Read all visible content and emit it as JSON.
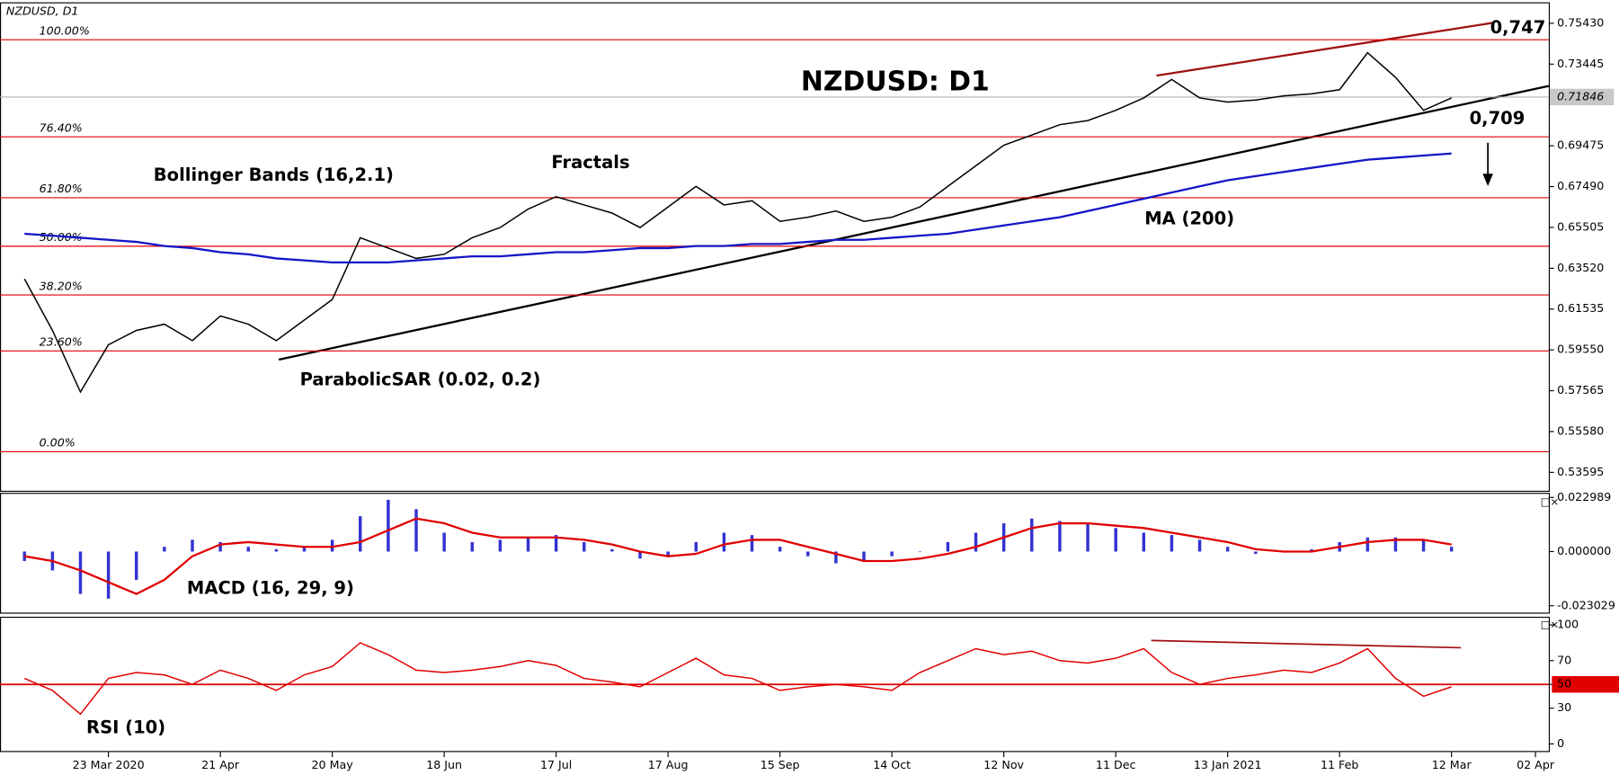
{
  "chart_data": [
    {
      "type": "line",
      "title": "NZDUSD: D1",
      "subtitle": "NZDUSD, D1",
      "categories": [
        null,
        null,
        null,
        "23 Mar 2020",
        null,
        null,
        null,
        "21 Apr",
        null,
        null,
        null,
        "20 May",
        null,
        null,
        null,
        "18 Jun",
        null,
        null,
        null,
        "17 Jul",
        null,
        null,
        null,
        "17 Aug",
        null,
        null,
        null,
        "15 Sep",
        null,
        null,
        null,
        "14 Oct",
        null,
        null,
        null,
        "12 Nov",
        null,
        null,
        null,
        "11 Dec",
        null,
        null,
        null,
        "13 Jan 2021",
        null,
        null,
        null,
        "11 Feb",
        null,
        null,
        null,
        "12 Mar",
        null,
        null,
        "02 Apr"
      ],
      "series": [
        {
          "color": "#000000",
          "values": [
            0.63,
            0.605,
            0.575,
            0.598,
            0.605,
            0.608,
            0.6,
            0.612,
            0.608,
            0.6,
            0.61,
            0.62,
            0.65,
            0.645,
            0.64,
            0.642,
            0.65,
            0.655,
            0.664,
            0.67,
            0.666,
            0.662,
            0.655,
            0.665,
            0.675,
            0.666,
            0.668,
            0.658,
            0.66,
            0.663,
            0.658,
            0.66,
            0.665,
            0.675,
            0.685,
            0.695,
            0.7,
            0.705,
            0.707,
            0.712,
            0.718,
            0.727,
            0.718,
            0.716,
            0.717,
            0.719,
            0.72,
            0.722,
            0.74,
            0.728,
            0.712,
            0.718,
            null,
            null,
            null
          ]
        },
        {
          "name": "MA (200)",
          "color": "#1515c8",
          "values": [
            0.652,
            0.651,
            0.65,
            0.649,
            0.648,
            0.646,
            0.645,
            0.643,
            0.642,
            0.64,
            0.639,
            0.638,
            0.638,
            0.638,
            0.639,
            0.64,
            0.641,
            0.641,
            0.642,
            0.643,
            0.643,
            0.644,
            0.645,
            0.645,
            0.646,
            0.646,
            0.647,
            0.647,
            0.648,
            0.649,
            0.649,
            0.65,
            0.651,
            0.652,
            0.654,
            0.656,
            0.658,
            0.66,
            0.663,
            0.666,
            0.669,
            0.672,
            0.675,
            0.678,
            0.68,
            0.682,
            0.684,
            0.686,
            0.688,
            0.689,
            0.69,
            0.691,
            null,
            null,
            null
          ]
        }
      ],
      "ylim": [
        0.527,
        0.764
      ],
      "yticks": [
        {
          "value": 0.7543,
          "label": "0.75430"
        },
        {
          "value": 0.73445,
          "label": "0.73445"
        },
        {
          "value": 0.69475,
          "label": "0.69475"
        },
        {
          "value": 0.6749,
          "label": "0.67490"
        },
        {
          "value": 0.65505,
          "label": "0.65505"
        },
        {
          "value": 0.6352,
          "label": "0.63520"
        },
        {
          "value": 0.61535,
          "label": "0.61535"
        },
        {
          "value": 0.5955,
          "label": "0.59550"
        },
        {
          "value": 0.57565,
          "label": "0.57565"
        },
        {
          "value": 0.5558,
          "label": "0.55580"
        },
        {
          "value": 0.53595,
          "label": "0.53595"
        }
      ],
      "last_price": {
        "value": 0.71846,
        "label": "0.71846"
      },
      "fib_levels": [
        {
          "value": 0.7463,
          "label": "100.00%"
        },
        {
          "value": 0.6991,
          "label": "76.40%"
        },
        {
          "value": 0.6695,
          "label": "61.80%"
        },
        {
          "value": 0.6459,
          "label": "50.00%"
        },
        {
          "value": 0.6222,
          "label": "38.20%"
        },
        {
          "value": 0.595,
          "label": "23.60%"
        },
        {
          "value": 0.546,
          "label": "0.00%"
        }
      ],
      "fib_color": "#e00000",
      "annotations": [
        "0,747",
        "0,709",
        "Bollinger Bands (16,2.1)",
        "Fractals",
        "ParabolicSAR (0.02, 0.2)"
      ]
    },
    {
      "type": "bar",
      "title": "MACD (16, 29, 9)",
      "color": "#3232d2",
      "values": [
        -0.004,
        -0.008,
        -0.018,
        -0.02,
        -0.012,
        0.002,
        0.005,
        0.004,
        0.002,
        0.001,
        0.002,
        0.005,
        0.015,
        0.022,
        0.018,
        0.008,
        0.004,
        0.005,
        0.006,
        0.007,
        0.004,
        0.001,
        -0.003,
        -0.002,
        0.004,
        0.008,
        0.007,
        0.002,
        -0.002,
        -0.005,
        -0.004,
        -0.002,
        0.0,
        0.004,
        0.008,
        0.012,
        0.014,
        0.013,
        0.012,
        0.01,
        0.008,
        0.007,
        0.005,
        0.002,
        -0.001,
        0.0,
        0.001,
        0.004,
        0.006,
        0.006,
        0.005,
        0.002,
        null,
        null,
        null
      ],
      "signal": {
        "color": "#e00000",
        "values": [
          -0.002,
          -0.004,
          -0.008,
          -0.013,
          -0.018,
          -0.012,
          -0.002,
          0.003,
          0.004,
          0.003,
          0.002,
          0.002,
          0.004,
          0.009,
          0.014,
          0.012,
          0.008,
          0.006,
          0.006,
          0.006,
          0.005,
          0.003,
          0.0,
          -0.002,
          -0.001,
          0.003,
          0.005,
          0.005,
          0.002,
          -0.001,
          -0.004,
          -0.004,
          -0.003,
          -0.001,
          0.002,
          0.006,
          0.01,
          0.012,
          0.012,
          0.011,
          0.01,
          0.008,
          0.006,
          0.004,
          0.001,
          0.0,
          0.0,
          0.002,
          0.004,
          0.005,
          0.005,
          0.003,
          null,
          null,
          null
        ]
      },
      "ylim": [
        -0.0255,
        0.0245
      ],
      "yticks": [
        0.022989,
        {
          "value": 0,
          "label": "0.000000"
        },
        -0.023029
      ]
    },
    {
      "type": "line",
      "title": "RSI (10)",
      "series": [
        {
          "color": "#e00000",
          "values": [
            55,
            45,
            25,
            55,
            60,
            58,
            50,
            62,
            55,
            45,
            58,
            65,
            85,
            75,
            62,
            60,
            62,
            65,
            70,
            66,
            55,
            52,
            48,
            60,
            72,
            58,
            55,
            45,
            48,
            50,
            48,
            45,
            60,
            70,
            80,
            75,
            78,
            70,
            68,
            72,
            80,
            60,
            50,
            55,
            58,
            62,
            60,
            68,
            80,
            55,
            40,
            48,
            null,
            null,
            null
          ]
        }
      ],
      "ylim": [
        -6,
        106
      ],
      "yticks": [
        0,
        30,
        50,
        70,
        100
      ],
      "level": 50,
      "level_color": "#e00000"
    }
  ]
}
